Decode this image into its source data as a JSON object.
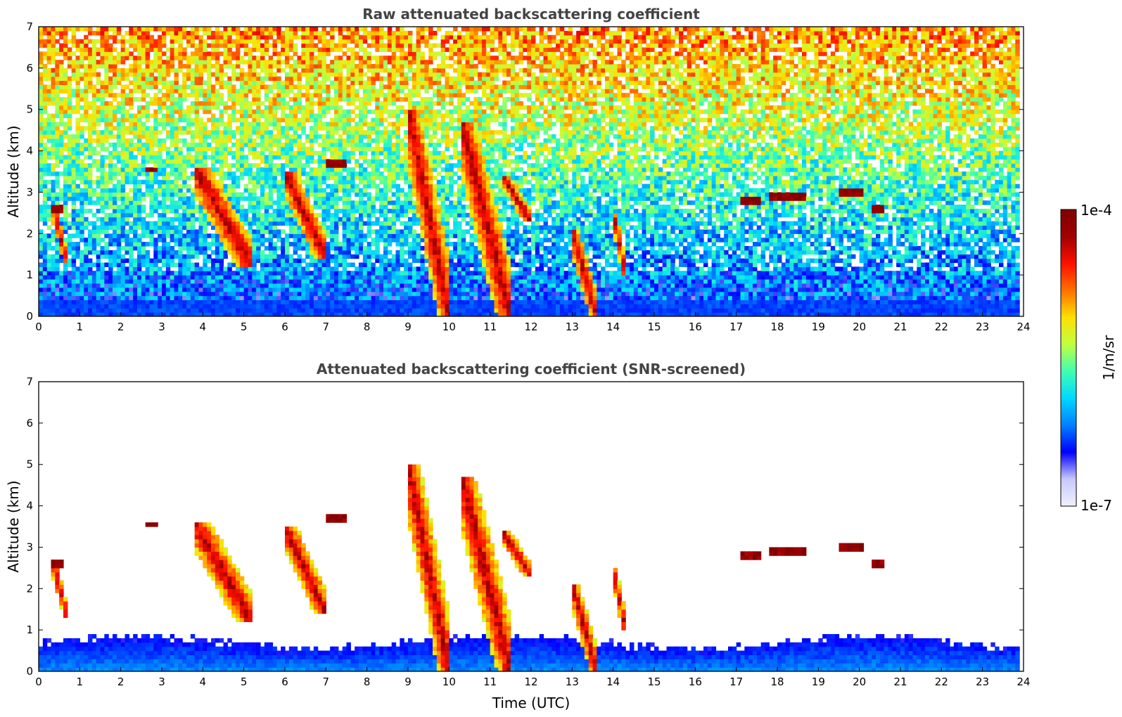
{
  "chart_data": [
    {
      "type": "heatmap",
      "title": "Raw attenuated backscattering coefficient",
      "xlabel": "",
      "ylabel": "Altitude (km)",
      "xlim": [
        0,
        24
      ],
      "ylim": [
        0,
        7
      ],
      "xticks": [
        "0",
        "1",
        "2",
        "3",
        "4",
        "5",
        "6",
        "7",
        "8",
        "9",
        "10",
        "11",
        "12",
        "13",
        "14",
        "15",
        "16",
        "17",
        "18",
        "19",
        "20",
        "21",
        "22",
        "23",
        "24"
      ],
      "yticks": [
        "0",
        "1",
        "2",
        "3",
        "4",
        "5",
        "6",
        "7"
      ],
      "data_end_time": 23.85,
      "background": "noisy signal increasing with altitude: blue near ground, cyan/green at mid levels, yellow/orange/red speckle aloft",
      "features": [
        {
          "kind": "layer",
          "t0": 0.3,
          "t1": 0.6,
          "z0": 2.5,
          "z1": 2.75
        },
        {
          "kind": "fall",
          "t0": 0.35,
          "t1": 0.7,
          "z0": 1.3,
          "z1": 2.6
        },
        {
          "kind": "layer",
          "t0": 2.6,
          "t1": 2.9,
          "z0": 3.5,
          "z1": 3.65
        },
        {
          "kind": "fall",
          "t0": 3.8,
          "t1": 5.2,
          "z0": 1.2,
          "z1": 3.6
        },
        {
          "kind": "fall",
          "t0": 6.0,
          "t1": 7.0,
          "z0": 1.4,
          "z1": 3.5
        },
        {
          "kind": "layer",
          "t0": 7.0,
          "t1": 7.5,
          "z0": 3.6,
          "z1": 3.85
        },
        {
          "kind": "fall",
          "t0": 9.0,
          "t1": 10.0,
          "z0": 0.0,
          "z1": 5.0
        },
        {
          "kind": "fall",
          "t0": 10.3,
          "t1": 11.5,
          "z0": 0.0,
          "z1": 4.7
        },
        {
          "kind": "fall",
          "t0": 11.3,
          "t1": 12.0,
          "z0": 2.3,
          "z1": 3.4
        },
        {
          "kind": "fall",
          "t0": 13.0,
          "t1": 13.6,
          "z0": 0.0,
          "z1": 2.1
        },
        {
          "kind": "fall",
          "t0": 14.0,
          "t1": 14.3,
          "z0": 1.0,
          "z1": 2.5
        },
        {
          "kind": "layer",
          "t0": 17.1,
          "t1": 17.6,
          "z0": 2.7,
          "z1": 2.9
        },
        {
          "kind": "layer",
          "t0": 17.8,
          "t1": 18.7,
          "z0": 2.8,
          "z1": 3.05
        },
        {
          "kind": "layer",
          "t0": 19.5,
          "t1": 20.1,
          "z0": 2.95,
          "z1": 3.1
        },
        {
          "kind": "layer",
          "t0": 20.3,
          "t1": 20.6,
          "z0": 2.55,
          "z1": 2.75
        }
      ]
    },
    {
      "type": "heatmap",
      "title": "Attenuated backscattering coefficient (SNR-screened)",
      "xlabel": "Time (UTC)",
      "ylabel": "Altitude (km)",
      "xlim": [
        0,
        24
      ],
      "ylim": [
        0,
        7
      ],
      "xticks": [
        "0",
        "1",
        "2",
        "3",
        "4",
        "5",
        "6",
        "7",
        "8",
        "9",
        "10",
        "11",
        "12",
        "13",
        "14",
        "15",
        "16",
        "17",
        "18",
        "19",
        "20",
        "21",
        "22",
        "23",
        "24"
      ],
      "yticks": [
        "0",
        "1",
        "2",
        "3",
        "4",
        "5",
        "6",
        "7"
      ],
      "data_end_time": 23.85,
      "background": "white above a blue boundary layer roughly 0.5-1 km deep",
      "features": [
        {
          "kind": "layer",
          "t0": 0.3,
          "t1": 0.6,
          "z0": 2.5,
          "z1": 2.75
        },
        {
          "kind": "fall",
          "t0": 0.35,
          "t1": 0.7,
          "z0": 1.3,
          "z1": 2.6
        },
        {
          "kind": "layer",
          "t0": 2.6,
          "t1": 2.9,
          "z0": 3.5,
          "z1": 3.65
        },
        {
          "kind": "fall",
          "t0": 3.8,
          "t1": 5.2,
          "z0": 1.2,
          "z1": 3.6
        },
        {
          "kind": "fall",
          "t0": 6.0,
          "t1": 7.0,
          "z0": 1.4,
          "z1": 3.5
        },
        {
          "kind": "layer",
          "t0": 7.0,
          "t1": 7.5,
          "z0": 3.6,
          "z1": 3.85
        },
        {
          "kind": "fall",
          "t0": 9.0,
          "t1": 10.0,
          "z0": 0.0,
          "z1": 5.0
        },
        {
          "kind": "fall",
          "t0": 10.3,
          "t1": 11.5,
          "z0": 0.0,
          "z1": 4.7
        },
        {
          "kind": "fall",
          "t0": 11.3,
          "t1": 12.0,
          "z0": 2.3,
          "z1": 3.4
        },
        {
          "kind": "fall",
          "t0": 13.0,
          "t1": 13.6,
          "z0": 0.0,
          "z1": 2.1
        },
        {
          "kind": "fall",
          "t0": 14.0,
          "t1": 14.3,
          "z0": 1.0,
          "z1": 2.5
        },
        {
          "kind": "layer",
          "t0": 17.1,
          "t1": 17.6,
          "z0": 2.7,
          "z1": 2.9
        },
        {
          "kind": "layer",
          "t0": 17.8,
          "t1": 18.7,
          "z0": 2.8,
          "z1": 3.05
        },
        {
          "kind": "layer",
          "t0": 19.5,
          "t1": 20.1,
          "z0": 2.95,
          "z1": 3.1
        },
        {
          "kind": "layer",
          "t0": 20.3,
          "t1": 20.6,
          "z0": 2.55,
          "z1": 2.75
        }
      ]
    }
  ],
  "colorbar": {
    "label": "1/m/sr",
    "max_label": "1e-4",
    "min_label": "1e-7",
    "scale": "log",
    "colormap": [
      "#f0f0ff",
      "#c8c8ff",
      "#0000ff",
      "#0080ff",
      "#00d8ff",
      "#40ffb0",
      "#c0ff40",
      "#ffe000",
      "#ff7000",
      "#ff1000",
      "#a00000",
      "#800000"
    ]
  }
}
